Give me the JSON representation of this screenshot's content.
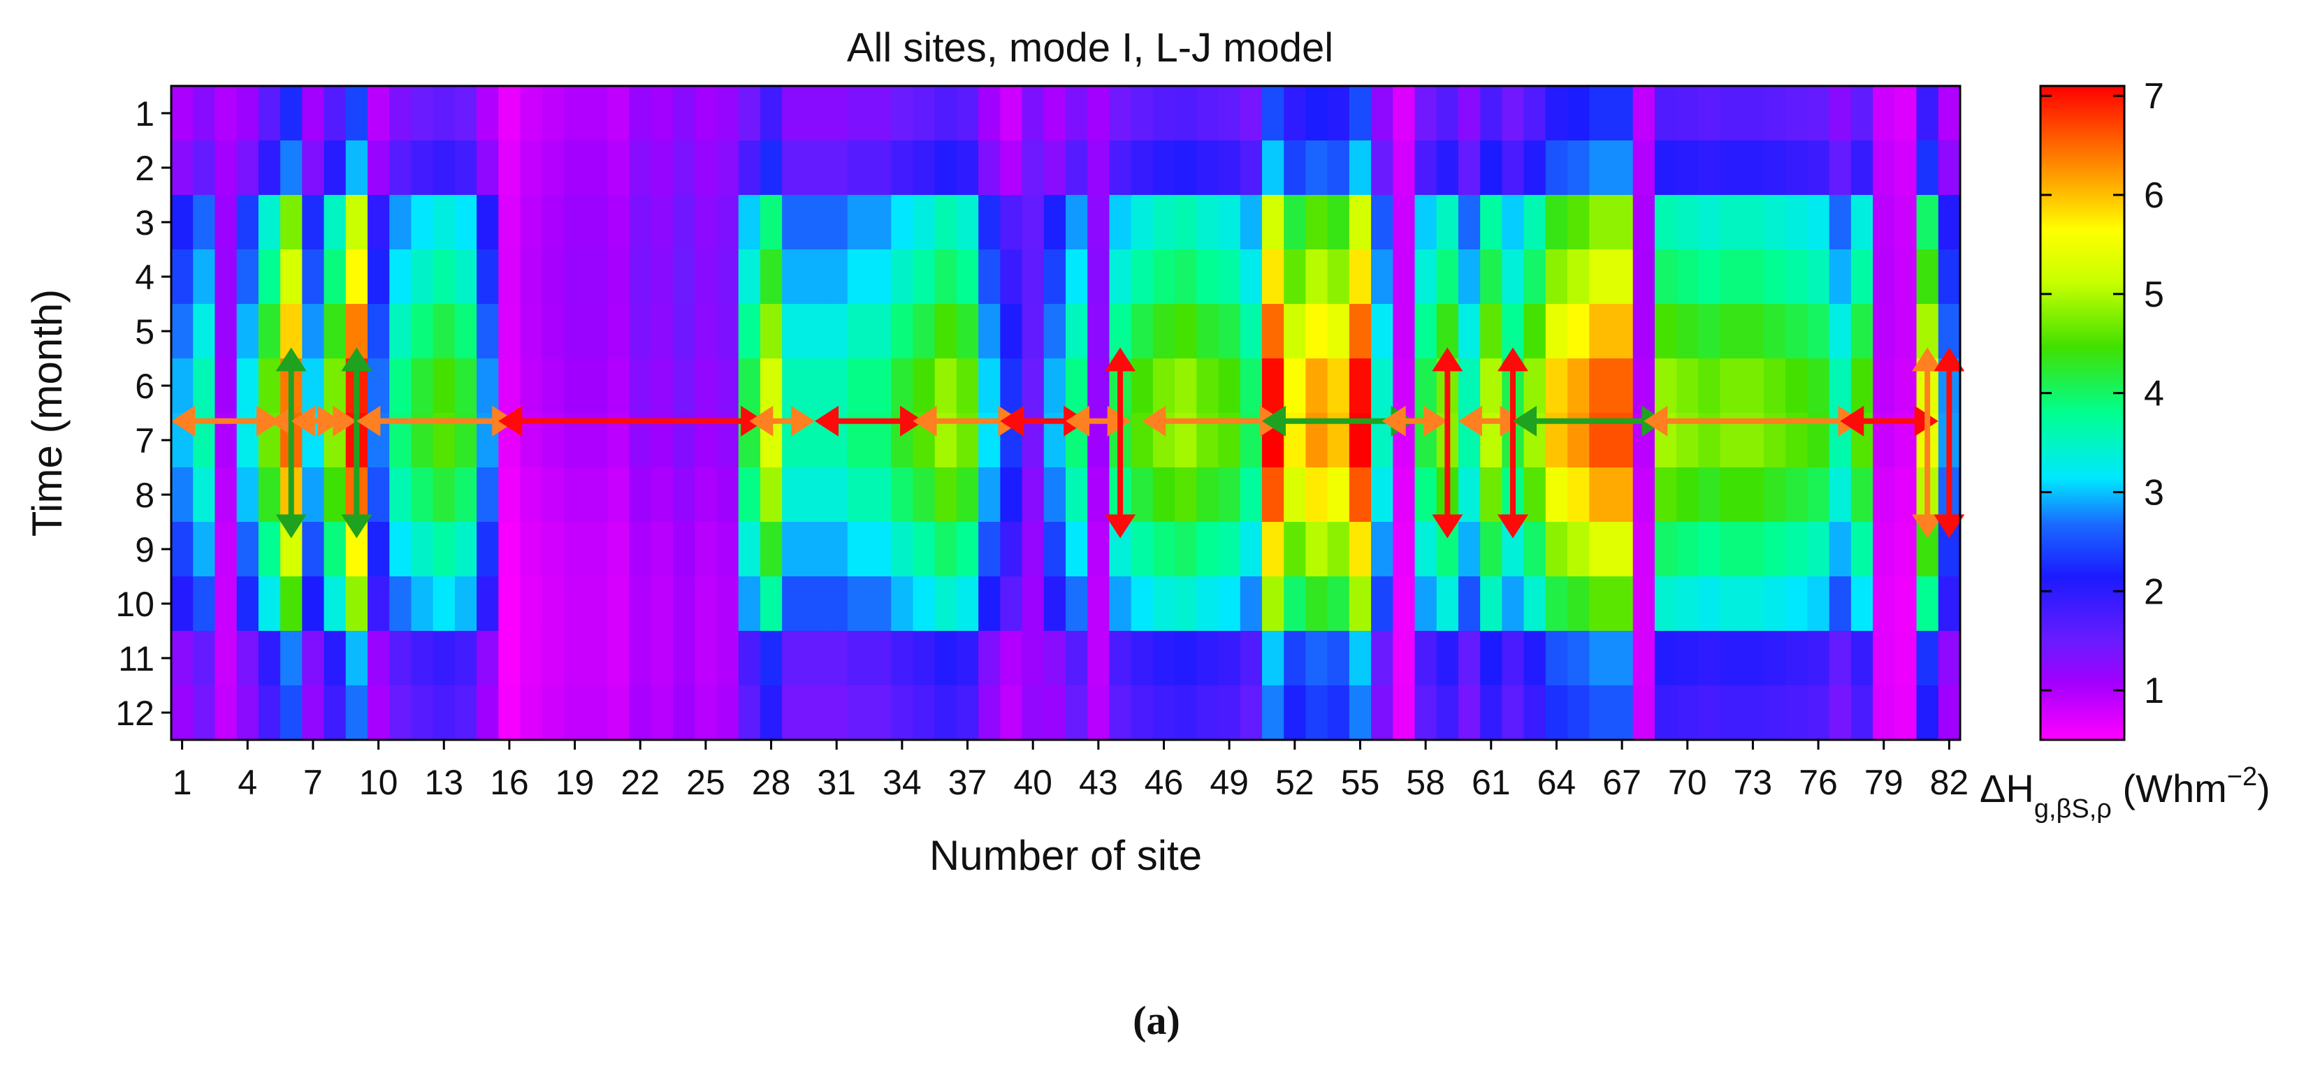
{
  "chart_data": {
    "type": "heatmap",
    "title": "All sites, mode I, L-J model",
    "xlabel": "Number of site",
    "ylabel": "Time (month)",
    "x_tick_labels": [
      "1",
      "4",
      "7",
      "10",
      "13",
      "16",
      "19",
      "22",
      "25",
      "28",
      "31",
      "34",
      "37",
      "40",
      "43",
      "46",
      "49",
      "52",
      "55",
      "58",
      "61",
      "64",
      "67",
      "70",
      "73",
      "76",
      "79",
      "82"
    ],
    "y_tick_labels": [
      "1",
      "2",
      "3",
      "4",
      "5",
      "6",
      "7",
      "8",
      "9",
      "10",
      "11",
      "12"
    ],
    "sites": 82,
    "months": 12,
    "colorbar": {
      "min": 0.5,
      "max": 7.1,
      "ticks": [
        "1",
        "2",
        "3",
        "4",
        "5",
        "6",
        "7"
      ],
      "label_main": "ΔH",
      "label_sub": "g,βS,ρ",
      "label_unit_open": " (Whm",
      "label_unit_exp": "−2",
      "label_unit_close": ")"
    },
    "site_levels": [
      2.3,
      2.8,
      1.1,
      2.5,
      3.6,
      5.0,
      2.4,
      3.7,
      5.4,
      2.1,
      3.0,
      3.3,
      3.5,
      3.3,
      2.2,
      0.7,
      0.9,
      1.0,
      1.1,
      1.1,
      1.0,
      1.3,
      1.2,
      1.4,
      1.2,
      1.3,
      3.2,
      4.1,
      2.8,
      2.8,
      2.8,
      3.0,
      3.0,
      3.3,
      3.5,
      3.8,
      3.6,
      2.4,
      1.8,
      1.5,
      2.3,
      3.0,
      1.2,
      3.2,
      3.5,
      3.7,
      3.8,
      3.6,
      3.5,
      3.1,
      5.5,
      4.4,
      4.8,
      4.6,
      5.5,
      2.7,
      0.8,
      3.2,
      3.7,
      2.8,
      3.9,
      3.2,
      3.8,
      4.6,
      4.8,
      5.1,
      5.1,
      1.0,
      3.8,
      3.7,
      3.6,
      3.7,
      3.7,
      3.6,
      3.5,
      3.4,
      2.8,
      3.5,
      0.9,
      0.8,
      4.2,
      2.2
    ],
    "monthly_factor": [
      0.45,
      0.55,
      0.95,
      1.05,
      1.18,
      1.28,
      1.3,
      1.2,
      1.05,
      0.9,
      0.55,
      0.5
    ],
    "arrow_legend": {
      "red": "#ff0a0a",
      "orange": "#ff8020",
      "green": "#1fa21f"
    },
    "arrows": [
      {
        "orientation": "h",
        "from": 1,
        "to": 5,
        "color": "orange"
      },
      {
        "orientation": "h",
        "from": 5.5,
        "to": 7.8,
        "color": "orange"
      },
      {
        "orientation": "v",
        "at": 6,
        "color": "green"
      },
      {
        "orientation": "h",
        "from": 6.5,
        "to": 8.5,
        "color": "orange"
      },
      {
        "orientation": "v",
        "at": 9,
        "color": "green"
      },
      {
        "orientation": "h",
        "from": 9.5,
        "to": 15.8,
        "color": "orange"
      },
      {
        "orientation": "h",
        "from": 16,
        "to": 27.2,
        "color": "red"
      },
      {
        "orientation": "h",
        "from": 27.5,
        "to": 29.5,
        "color": "orange"
      },
      {
        "orientation": "h",
        "from": 30.5,
        "to": 34.5,
        "color": "red"
      },
      {
        "orientation": "h",
        "from": 35,
        "to": 39,
        "color": "orange"
      },
      {
        "orientation": "h",
        "from": 39,
        "to": 42,
        "color": "red"
      },
      {
        "orientation": "h",
        "from": 42,
        "to": 44,
        "color": "orange"
      },
      {
        "orientation": "v",
        "at": 44,
        "color": "red"
      },
      {
        "orientation": "h",
        "from": 45.5,
        "to": 51,
        "color": "orange"
      },
      {
        "orientation": "h",
        "from": 51,
        "to": 57,
        "color": "green"
      },
      {
        "orientation": "h",
        "from": 56.5,
        "to": 58.5,
        "color": "orange"
      },
      {
        "orientation": "v",
        "at": 59,
        "color": "red"
      },
      {
        "orientation": "h",
        "from": 60,
        "to": 62,
        "color": "orange"
      },
      {
        "orientation": "v",
        "at": 62,
        "color": "red"
      },
      {
        "orientation": "h",
        "from": 62.5,
        "to": 68.5,
        "color": "green"
      },
      {
        "orientation": "h",
        "from": 68.5,
        "to": 77.5,
        "color": "orange"
      },
      {
        "orientation": "h",
        "from": 77.5,
        "to": 81,
        "color": "red"
      },
      {
        "orientation": "v",
        "at": 81,
        "color": "orange"
      },
      {
        "orientation": "v",
        "at": 82,
        "color": "red"
      }
    ]
  },
  "caption": {
    "open": "(",
    "letter": "a",
    "close": ")"
  }
}
